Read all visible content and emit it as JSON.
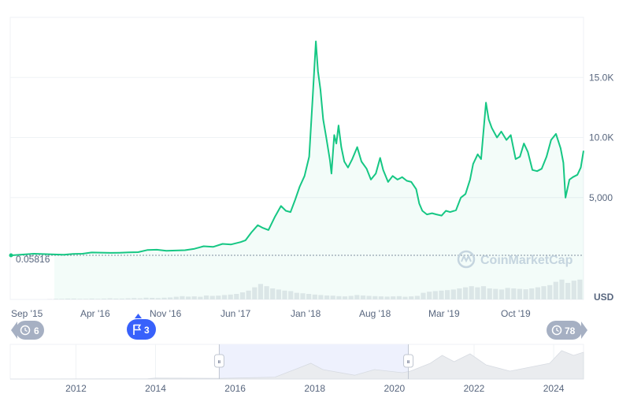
{
  "chart_data": {
    "type": "line",
    "x_ticks": [
      "Sep '15",
      "Apr '16",
      "Nov '16",
      "Jun '17",
      "Jan '18",
      "Aug '18",
      "Mar '19",
      "Oct '19"
    ],
    "y_ticks": [
      "15.0K",
      "10.0K",
      "5,000"
    ],
    "y_tick_values": [
      15000,
      10000,
      5000
    ],
    "ylim": [
      0,
      20000
    ],
    "currency_label": "USD",
    "baseline_value_label": "0.05816",
    "watermark": "CoinMarketCap",
    "grid": true,
    "line_color": "#16c784",
    "x_date_range": [
      "2015-08-15",
      "2020-05-10"
    ],
    "series": [
      {
        "dates": [
          "2015-08-15",
          "2015-09-15",
          "2015-10-15",
          "2015-11-15",
          "2015-12-15",
          "2016-01-15",
          "2016-02-15",
          "2016-03-15",
          "2016-04-15",
          "2016-05-15",
          "2016-06-15",
          "2016-07-15",
          "2016-08-15",
          "2016-09-15",
          "2016-10-15",
          "2016-11-15",
          "2016-12-15",
          "2017-01-15",
          "2017-02-15",
          "2017-03-15",
          "2017-04-15",
          "2017-05-01",
          "2017-05-20",
          "2017-06-10",
          "2017-06-25",
          "2017-07-15",
          "2017-08-05",
          "2017-08-25",
          "2017-09-10",
          "2017-09-25",
          "2017-10-10",
          "2017-10-25",
          "2017-11-10",
          "2017-11-25",
          "2017-12-07",
          "2017-12-17",
          "2017-12-24",
          "2018-01-01",
          "2018-01-10",
          "2018-01-20",
          "2018-02-01",
          "2018-02-06",
          "2018-02-15",
          "2018-02-22",
          "2018-03-01",
          "2018-03-10",
          "2018-03-20",
          "2018-04-01",
          "2018-04-15",
          "2018-05-01",
          "2018-05-15",
          "2018-06-01",
          "2018-06-15",
          "2018-07-01",
          "2018-07-15",
          "2018-07-25",
          "2018-08-10",
          "2018-08-25",
          "2018-09-10",
          "2018-09-25",
          "2018-10-10",
          "2018-10-25",
          "2018-11-10",
          "2018-11-20",
          "2018-11-30",
          "2018-12-15",
          "2019-01-01",
          "2019-01-15",
          "2019-02-01",
          "2019-02-15",
          "2019-03-01",
          "2019-03-20",
          "2019-04-05",
          "2019-04-20",
          "2019-05-05",
          "2019-05-15",
          "2019-05-30",
          "2019-06-10",
          "2019-06-26",
          "2019-07-05",
          "2019-07-15",
          "2019-08-01",
          "2019-08-15",
          "2019-09-01",
          "2019-09-15",
          "2019-10-01",
          "2019-10-15",
          "2019-10-28",
          "2019-11-10",
          "2019-11-25",
          "2019-12-10",
          "2019-12-25",
          "2020-01-10",
          "2020-01-25",
          "2020-02-10",
          "2020-02-25",
          "2020-03-05",
          "2020-03-12",
          "2020-03-25",
          "2020-04-05",
          "2020-04-20",
          "2020-05-01",
          "2020-05-10"
        ],
        "values": [
          270,
          240,
          310,
          330,
          430,
          420,
          400,
          410,
          440,
          460,
          640,
          660,
          580,
          600,
          620,
          740,
          950,
          900,
          1150,
          1100,
          1300,
          1450,
          2100,
          2700,
          2500,
          2300,
          3400,
          4300,
          3900,
          3800,
          4800,
          5900,
          6800,
          8400,
          13500,
          18000,
          15500,
          14000,
          11500,
          10000,
          8100,
          7000,
          10200,
          9500,
          11000,
          9200,
          8000,
          7500,
          8200,
          9200,
          8000,
          7400,
          6500,
          7000,
          8300,
          7300,
          6300,
          6800,
          6500,
          6700,
          6400,
          6300,
          5700,
          4500,
          3900,
          3600,
          3700,
          3600,
          3500,
          3900,
          3800,
          3950,
          5000,
          5300,
          6500,
          7800,
          8600,
          8200,
          12900,
          11500,
          10800,
          10000,
          10500,
          9800,
          10200,
          8200,
          8400,
          9500,
          8800,
          7300,
          7200,
          7400,
          8400,
          9800,
          10300,
          9100,
          7900,
          5000,
          6500,
          6700,
          6900,
          7500,
          8900
        ]
      }
    ]
  },
  "price_chart_range": {
    "x_range": [
      "2015-08-15",
      "2020-05-10"
    ],
    "volume": [
      0.02,
      0.03,
      0.03,
      0.04,
      0.04,
      0.03,
      0.03,
      0.04,
      0.03,
      0.04,
      0.05,
      0.04,
      0.04,
      0.05,
      0.06,
      0.05,
      0.08,
      0.07,
      0.06,
      0.08,
      0.09,
      0.12,
      0.15,
      0.13,
      0.14,
      0.12,
      0.18,
      0.16,
      0.17,
      0.2,
      0.22,
      0.25,
      0.32,
      0.4,
      0.55,
      0.7,
      0.6,
      0.5,
      0.45,
      0.4,
      0.38,
      0.3,
      0.28,
      0.25,
      0.22,
      0.2,
      0.18,
      0.17,
      0.15,
      0.14,
      0.16,
      0.2,
      0.18,
      0.16,
      0.15,
      0.14,
      0.13,
      0.14,
      0.15,
      0.12,
      0.14,
      0.16,
      0.3,
      0.35,
      0.38,
      0.4,
      0.42,
      0.45,
      0.5,
      0.55,
      0.6,
      0.55,
      0.6,
      0.5,
      0.48,
      0.45,
      0.52,
      0.5,
      0.48,
      0.46,
      0.5,
      0.55,
      0.6,
      0.65,
      0.8,
      0.9,
      0.75,
      0.85,
      0.9
    ]
  },
  "annotations": {
    "left_pill": "6",
    "flag_pill": "3",
    "right_pill": "78"
  },
  "navigator": {
    "x_labels": [
      "2012",
      "2014",
      "2016",
      "2018",
      "2020",
      "2022",
      "2024"
    ],
    "x_label_values": [
      2012,
      2014,
      2016,
      2018,
      2020,
      2022,
      2024
    ],
    "x_range": [
      2010.35,
      2024.75
    ],
    "selection_range": [
      2015.6,
      2020.35
    ],
    "handle_left_glyph": "⏸",
    "handle_right_glyph": "⏸"
  },
  "colors": {
    "line": "#16c784",
    "flag_pill": "#3861fb",
    "grey_pill": "#a6b0c3",
    "grid": "#eff2f5",
    "selection": "#eef1fd",
    "watermark": "#cfd6e4"
  }
}
